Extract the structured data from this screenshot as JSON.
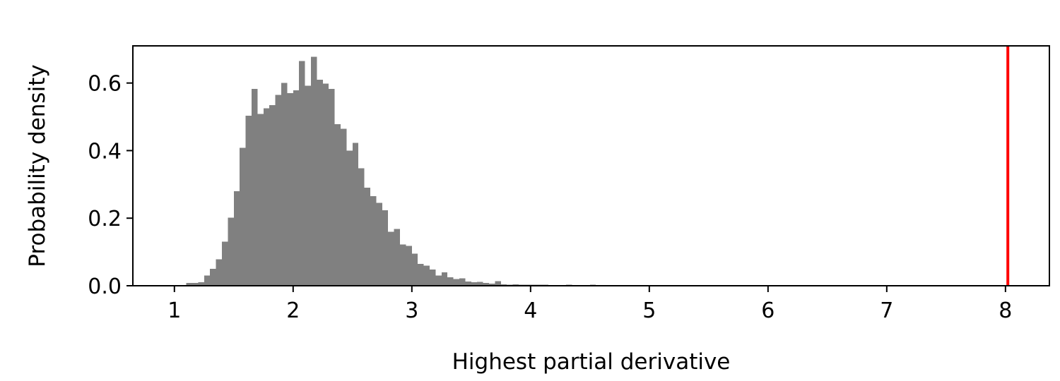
{
  "chart_data": {
    "type": "bar",
    "subtype": "histogram",
    "xlabel": "Highest partial derivative",
    "ylabel": "Probability density",
    "xlim": [
      0.65,
      8.37
    ],
    "ylim": [
      0,
      0.71
    ],
    "xticks": [
      "1",
      "2",
      "3",
      "4",
      "5",
      "6",
      "7",
      "8"
    ],
    "yticks": [
      "0.0",
      "0.2",
      "0.4",
      "0.6"
    ],
    "grid": false,
    "legend": "none",
    "bar_color": "#808080",
    "bin_width": 0.05,
    "bins_start": 1.0,
    "values": [
      0.002,
      0.001,
      0.008,
      0.008,
      0.01,
      0.03,
      0.05,
      0.078,
      0.13,
      0.202,
      0.28,
      0.408,
      0.503,
      0.583,
      0.508,
      0.525,
      0.535,
      0.565,
      0.6,
      0.57,
      0.578,
      0.665,
      0.592,
      0.678,
      0.61,
      0.598,
      0.583,
      0.478,
      0.465,
      0.4,
      0.423,
      0.348,
      0.29,
      0.265,
      0.245,
      0.223,
      0.16,
      0.168,
      0.122,
      0.118,
      0.095,
      0.065,
      0.06,
      0.048,
      0.03,
      0.04,
      0.025,
      0.02,
      0.022,
      0.013,
      0.01,
      0.012,
      0.008,
      0.006,
      0.014,
      0.004,
      0.003,
      0.004,
      0.003,
      0.003,
      0.003,
      0.003,
      0.003,
      0.001,
      0.001,
      0.001,
      0.003,
      0.002,
      0.001,
      0.001,
      0.003,
      0.001,
      0.002,
      0.001,
      0.001,
      0.001,
      0.001,
      0.001,
      0.001,
      0.001,
      0.002
    ],
    "marker_line": {
      "x": 8.02,
      "color": "#ff0000"
    }
  }
}
